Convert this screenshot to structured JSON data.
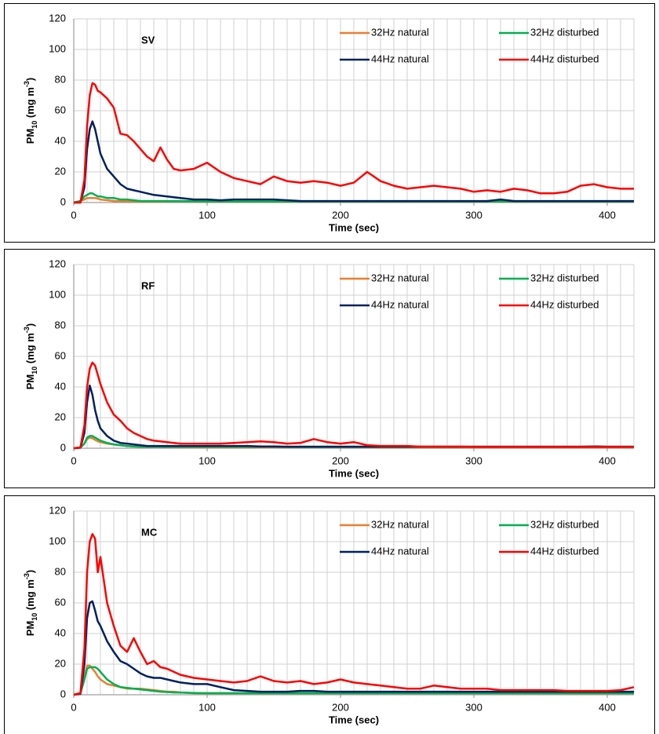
{
  "chart_data": [
    {
      "type": "line",
      "title": "SV",
      "x_label": "Time (sec)",
      "y_label": [
        "PM",
        "10",
        " (mg m",
        "-3",
        ")"
      ],
      "legend": "top-right",
      "grid": true,
      "xlim": [
        0,
        420
      ],
      "ylim": [
        0,
        120
      ],
      "xticks": [
        0,
        100,
        200,
        300,
        400
      ],
      "yticks": [
        0,
        20,
        40,
        60,
        80,
        100,
        120
      ],
      "xgrid": [
        10,
        20,
        30,
        40,
        50,
        60,
        70,
        80,
        90,
        100,
        110,
        120,
        130,
        140,
        150,
        160,
        170,
        180,
        190,
        200,
        210,
        220,
        230,
        240,
        250,
        260,
        270,
        280,
        290,
        300,
        310,
        320,
        330,
        340,
        350,
        360,
        370,
        380,
        390,
        400,
        410,
        420
      ],
      "x": [
        0,
        5,
        8,
        10,
        12,
        14,
        16,
        18,
        20,
        25,
        30,
        35,
        40,
        45,
        50,
        55,
        60,
        65,
        70,
        75,
        80,
        90,
        100,
        110,
        120,
        130,
        140,
        150,
        160,
        170,
        180,
        190,
        200,
        210,
        220,
        230,
        240,
        250,
        260,
        270,
        280,
        290,
        300,
        310,
        320,
        330,
        340,
        350,
        360,
        370,
        380,
        390,
        400,
        410,
        420
      ],
      "series": [
        {
          "name": "32Hz natural",
          "color": "#ed7d31",
          "values": [
            0,
            1,
            2,
            3,
            3,
            3,
            3,
            2.5,
            2,
            1.5,
            1,
            1,
            0.8,
            0.7,
            0.6,
            0.6,
            0.6,
            0.6,
            0.8,
            0.8,
            0.8,
            0.6,
            0.5,
            0.5,
            0.5,
            0.5,
            0.5,
            0.5,
            0.5,
            0.5,
            0.5,
            0.5,
            0.5,
            0.5,
            0.5,
            0.5,
            0.5,
            0.5,
            0.5,
            0.5,
            0.5,
            0.5,
            0.5,
            0.5,
            0.5,
            0.5,
            0.5,
            0.5,
            0.5,
            0.5,
            0.5,
            0.5,
            0.5,
            0.5,
            0.5
          ]
        },
        {
          "name": "32Hz disturbed",
          "color": "#00b050",
          "values": [
            0,
            1,
            4,
            5,
            6,
            6,
            5,
            4,
            4,
            3,
            3,
            2,
            2,
            1.5,
            1,
            1,
            1,
            1,
            1,
            1,
            1,
            0.8,
            0.7,
            0.6,
            0.6,
            0.6,
            0.6,
            0.6,
            0.6,
            0.6,
            0.6,
            0.6,
            0.6,
            0.6,
            0.6,
            0.6,
            0.6,
            0.6,
            0.6,
            0.6,
            0.6,
            0.6,
            0.6,
            0.6,
            0.6,
            0.6,
            0.6,
            0.6,
            0.6,
            0.6,
            0.6,
            0.6,
            0.6,
            0.6,
            0.6
          ]
        },
        {
          "name": "44Hz natural",
          "color": "#002060",
          "values": [
            0,
            0,
            10,
            35,
            48,
            53,
            48,
            40,
            32,
            22,
            17,
            12,
            9,
            8,
            7,
            6,
            5,
            4.5,
            4,
            3.5,
            3,
            2,
            2,
            1.5,
            2,
            2,
            2,
            2,
            1.5,
            1,
            1,
            1,
            1,
            1,
            1,
            1,
            1,
            1,
            1,
            1,
            1,
            1,
            1,
            1,
            2,
            1,
            1,
            1,
            1,
            1,
            1,
            1,
            1,
            1,
            1
          ]
        },
        {
          "name": "44Hz disturbed",
          "color": "#ff0000",
          "values": [
            0,
            0,
            15,
            50,
            70,
            78,
            77,
            73,
            72,
            68,
            62,
            45,
            44,
            40,
            35,
            30,
            27,
            36,
            28,
            22,
            21,
            22,
            26,
            20,
            16,
            14,
            12,
            17,
            14,
            13,
            14,
            13,
            11,
            13,
            20,
            14,
            11,
            9,
            10,
            11,
            10,
            9,
            7,
            8,
            7,
            9,
            8,
            6,
            6,
            7,
            11,
            12,
            10,
            9,
            9
          ]
        }
      ]
    },
    {
      "type": "line",
      "title": "RF",
      "x_label": "Time (sec)",
      "y_label": [
        "PM",
        "10",
        " (mg m",
        "-3",
        ")"
      ],
      "legend": "top-right",
      "grid": true,
      "xlim": [
        0,
        420
      ],
      "ylim": [
        0,
        120
      ],
      "xticks": [
        0,
        100,
        200,
        300,
        400
      ],
      "yticks": [
        0,
        20,
        40,
        60,
        80,
        100,
        120
      ],
      "xgrid": [
        10,
        20,
        30,
        40,
        50,
        60,
        70,
        80,
        90,
        100,
        110,
        120,
        130,
        140,
        150,
        160,
        170,
        180,
        190,
        200,
        210,
        220,
        230,
        240,
        250,
        260,
        270,
        280,
        290,
        300,
        310,
        320,
        330,
        340,
        350,
        360,
        370,
        380,
        390,
        400,
        410,
        420
      ],
      "x": [
        0,
        5,
        8,
        10,
        12,
        14,
        16,
        18,
        20,
        25,
        30,
        35,
        40,
        45,
        50,
        55,
        60,
        65,
        70,
        75,
        80,
        90,
        100,
        110,
        120,
        130,
        140,
        150,
        160,
        170,
        180,
        190,
        200,
        210,
        220,
        230,
        240,
        250,
        260,
        270,
        280,
        290,
        300,
        310,
        320,
        330,
        340,
        350,
        360,
        370,
        380,
        390,
        400,
        410,
        420
      ],
      "series": [
        {
          "name": "32Hz natural",
          "color": "#ed7d31",
          "values": [
            0,
            0.5,
            3,
            6,
            7,
            6.5,
            5.5,
            4.5,
            4,
            3,
            2.5,
            2,
            1.5,
            1.2,
            1,
            1,
            1,
            1,
            0.8,
            0.8,
            0.8,
            0.7,
            0.7,
            0.6,
            0.6,
            0.6,
            0.6,
            0.6,
            0.6,
            0.6,
            0.6,
            0.6,
            0.6,
            0.6,
            0.6,
            0.6,
            0.6,
            0.6,
            0.6,
            0.6,
            0.6,
            0.6,
            0.6,
            0.6,
            0.6,
            0.6,
            0.6,
            0.6,
            0.6,
            0.6,
            0.6,
            0.6,
            0.6,
            0.6,
            0.6
          ]
        },
        {
          "name": "32Hz disturbed",
          "color": "#00b050",
          "values": [
            0,
            0.5,
            3,
            7,
            8,
            8,
            7,
            6,
            5,
            3.5,
            2.5,
            2,
            1.5,
            1.2,
            1,
            1,
            1,
            1,
            1,
            1,
            1,
            1,
            1,
            1,
            1,
            1,
            1,
            1,
            0.8,
            0.8,
            0.8,
            0.8,
            0.8,
            0.8,
            0.8,
            0.8,
            0.8,
            0.8,
            0.8,
            0.8,
            0.8,
            0.8,
            0.8,
            0.8,
            0.8,
            0.8,
            0.8,
            0.8,
            0.8,
            0.8,
            0.8,
            0.8,
            0.8,
            0.8,
            0.8
          ]
        },
        {
          "name": "44Hz natural",
          "color": "#002060",
          "values": [
            0,
            0.3,
            10,
            30,
            41,
            35,
            25,
            18,
            13,
            8,
            5,
            3.5,
            3,
            2.5,
            2,
            1.5,
            1.5,
            1.5,
            1.5,
            1.5,
            1.5,
            1.5,
            1.5,
            1.5,
            1.5,
            1.5,
            1.2,
            1.2,
            1,
            1,
            1,
            1,
            1,
            1,
            1,
            1,
            1,
            1,
            1,
            1,
            1,
            1,
            1,
            1,
            1,
            1,
            1,
            1,
            1,
            1,
            1,
            1.2,
            1,
            1,
            1
          ]
        },
        {
          "name": "44Hz disturbed",
          "color": "#ff0000",
          "values": [
            0,
            0.5,
            15,
            40,
            52,
            56,
            54,
            48,
            42,
            30,
            22,
            18,
            13,
            10,
            8,
            6,
            5,
            4.5,
            4,
            3.5,
            3,
            3,
            3,
            3,
            3.5,
            4,
            4.5,
            4,
            3,
            3.5,
            6,
            4,
            3,
            4,
            2,
            1.5,
            1.5,
            1.5,
            1,
            1,
            1,
            1,
            0.8,
            0.8,
            0.8,
            0.8,
            0.8,
            0.8,
            0.8,
            0.8,
            0.8,
            0.8,
            0.8,
            0.8,
            0.8
          ]
        }
      ]
    },
    {
      "type": "line",
      "title": "MC",
      "x_label": "Time (sec)",
      "y_label": [
        "PM",
        "10",
        " (mg m",
        "-3",
        ")"
      ],
      "legend": "top-right",
      "grid": true,
      "xlim": [
        0,
        420
      ],
      "ylim": [
        0,
        120
      ],
      "xticks": [
        0,
        100,
        200,
        300,
        400
      ],
      "yticks": [
        0,
        20,
        40,
        60,
        80,
        100,
        120
      ],
      "xgrid": [
        10,
        20,
        30,
        40,
        50,
        60,
        70,
        80,
        90,
        100,
        110,
        120,
        130,
        140,
        150,
        160,
        170,
        180,
        190,
        200,
        210,
        220,
        230,
        240,
        250,
        260,
        270,
        280,
        290,
        300,
        310,
        320,
        330,
        340,
        350,
        360,
        370,
        380,
        390,
        400,
        410,
        420
      ],
      "x": [
        0,
        5,
        8,
        10,
        12,
        14,
        16,
        18,
        20,
        25,
        30,
        35,
        40,
        45,
        50,
        55,
        60,
        65,
        70,
        75,
        80,
        90,
        100,
        110,
        120,
        130,
        140,
        150,
        160,
        170,
        180,
        190,
        200,
        210,
        220,
        230,
        240,
        250,
        260,
        270,
        280,
        290,
        300,
        310,
        320,
        330,
        340,
        350,
        360,
        370,
        380,
        390,
        400,
        410,
        420
      ],
      "series": [
        {
          "name": "32Hz natural",
          "color": "#ed7d31",
          "values": [
            0,
            1,
            12,
            19,
            19,
            17,
            15,
            12,
            10,
            7,
            6,
            5,
            4,
            4,
            4,
            3.5,
            3,
            2.5,
            2,
            2,
            1.5,
            1,
            1,
            1,
            1,
            1,
            1,
            1,
            1,
            1,
            1,
            1,
            1,
            1,
            1,
            1,
            1,
            1,
            1,
            1,
            1,
            1,
            1,
            1,
            1,
            1,
            1,
            1,
            1,
            1,
            1,
            1,
            1,
            1,
            1
          ]
        },
        {
          "name": "32Hz disturbed",
          "color": "#00b050",
          "values": [
            0,
            1,
            10,
            17,
            18,
            18,
            18,
            17,
            15,
            10,
            7,
            5,
            4.5,
            4,
            3.5,
            3,
            2.5,
            2,
            1.8,
            1.5,
            1.5,
            1.2,
            1,
            1,
            1,
            1,
            1,
            1,
            1,
            1,
            1,
            1,
            1,
            1,
            1,
            1,
            1,
            1,
            1,
            1,
            1,
            1,
            1,
            1,
            1,
            1,
            1,
            1,
            1,
            1,
            1,
            1,
            1,
            1,
            1
          ]
        },
        {
          "name": "44Hz natural",
          "color": "#002060",
          "values": [
            0,
            0.5,
            20,
            50,
            60,
            61,
            55,
            48,
            45,
            35,
            28,
            22,
            20,
            17,
            14,
            12,
            11,
            11,
            10,
            9,
            8,
            7,
            7,
            5,
            3,
            2.5,
            2,
            2,
            2,
            2.5,
            2.5,
            2,
            2,
            2,
            2,
            2,
            2,
            2,
            2,
            2,
            2,
            2,
            2,
            2,
            2,
            2,
            2,
            2,
            2,
            2,
            2,
            2,
            2,
            2,
            2
          ]
        },
        {
          "name": "44Hz disturbed",
          "color": "#ff0000",
          "values": [
            0,
            1,
            30,
            80,
            100,
            105,
            102,
            80,
            90,
            60,
            45,
            32,
            28,
            37,
            28,
            20,
            22,
            18,
            17,
            15,
            13,
            11,
            10,
            9,
            8,
            9,
            12,
            9,
            8,
            9,
            7,
            8,
            10,
            8,
            7,
            6,
            5,
            4,
            4,
            6,
            5,
            4,
            4,
            4,
            3,
            3,
            3,
            3,
            3,
            2.5,
            2.5,
            2.5,
            2.5,
            3,
            5
          ]
        }
      ]
    }
  ]
}
